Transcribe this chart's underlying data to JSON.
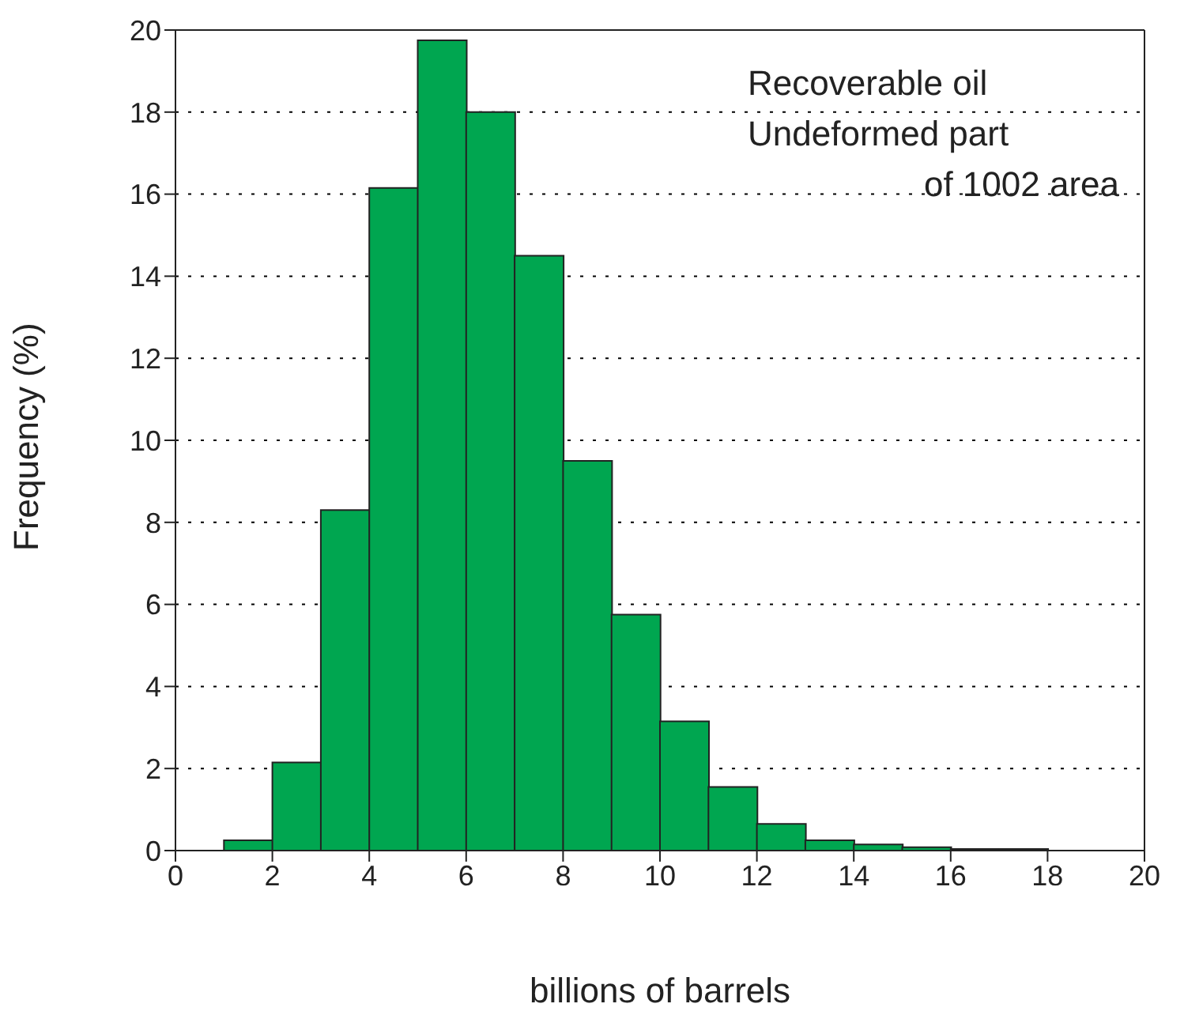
{
  "chart_data": {
    "type": "histogram",
    "xlabel": "billions of barrels",
    "ylabel": "Frequency (%)",
    "annotations": [
      "Recoverable oil",
      "Undeformed part",
      "of 1002 area"
    ],
    "bins": [
      0,
      1,
      2,
      3,
      4,
      5,
      6,
      7,
      8,
      9,
      10,
      11,
      12,
      13,
      14,
      15,
      16,
      17,
      18,
      19,
      20
    ],
    "values": [
      0,
      0.25,
      2.15,
      8.3,
      16.15,
      19.75,
      18,
      14.5,
      9.5,
      5.75,
      3.15,
      1.55,
      0.65,
      0.25,
      0.15,
      0.08,
      0.04,
      0.04,
      0,
      0
    ],
    "color": "#00a650",
    "xlim": [
      0,
      20
    ],
    "xticks": [
      0,
      2,
      4,
      6,
      8,
      10,
      12,
      14,
      16,
      18,
      20
    ],
    "ylim": [
      0,
      20
    ],
    "yticks": [
      0,
      2,
      4,
      6,
      8,
      10,
      12,
      14,
      16,
      18,
      20
    ],
    "grid": "y"
  }
}
